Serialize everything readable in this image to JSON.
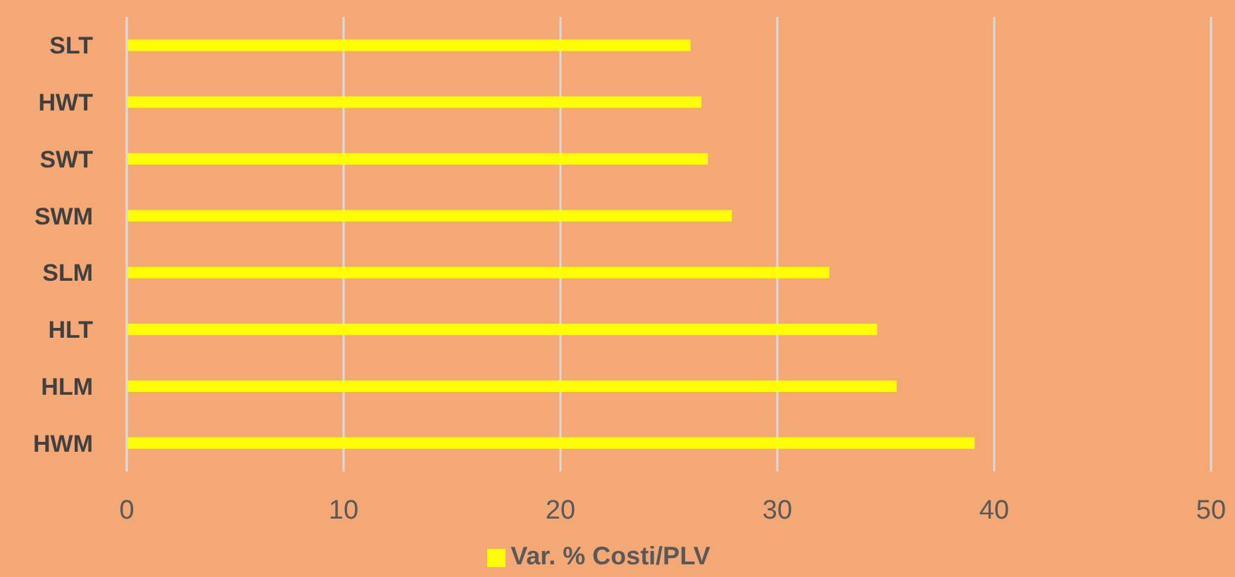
{
  "chart_data": {
    "type": "bar",
    "orientation": "horizontal",
    "categories": [
      "SLT",
      "HWT",
      "SWT",
      "SWM",
      "SLM",
      "HLT",
      "HLM",
      "HWM"
    ],
    "series": [
      {
        "name": "Var. % Costi/PLV",
        "color": "#ffff00",
        "values": [
          26.0,
          26.5,
          26.8,
          27.9,
          32.4,
          34.6,
          35.5,
          39.1
        ]
      }
    ],
    "xlim": [
      0,
      50
    ],
    "xticks": [
      0,
      10,
      20,
      30,
      40,
      50
    ],
    "grid": "x",
    "legend": "bottom"
  }
}
